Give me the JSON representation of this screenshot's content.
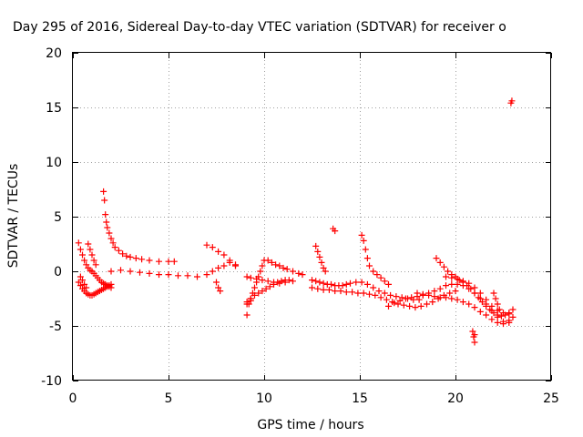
{
  "chart_data": {
    "type": "scatter",
    "title": "Day 295 of 2016, Sidereal Day-to-day VTEC variation (SDTVAR) for receiver o",
    "xlabel": "GPS time / hours",
    "ylabel": "SDTVAR / TECUs",
    "xlim": [
      0,
      25
    ],
    "ylim": [
      -10,
      20
    ],
    "x_ticks": [
      "0",
      "5",
      "10",
      "15",
      "20",
      "25"
    ],
    "y_ticks": [
      "-10",
      "-5",
      "0",
      "5",
      "10",
      "15",
      "20"
    ],
    "grid": true,
    "legend": "none",
    "marker": "+",
    "color": "#ff0000",
    "series": [
      {
        "x": [
          0.3,
          0.4,
          0.5,
          0.6,
          0.7,
          0.8,
          0.9,
          1.0,
          1.1,
          1.2,
          1.3,
          1.4,
          1.5,
          1.6,
          1.7,
          1.8,
          1.9,
          2.0,
          0.3,
          0.4,
          0.5,
          0.6,
          0.7,
          0.8,
          0.9,
          1.0,
          1.1,
          1.2,
          1.3,
          1.4,
          1.5,
          1.6,
          1.7,
          1.8,
          1.9,
          2.0,
          0.4,
          0.5,
          0.6,
          0.7,
          0.8,
          0.9,
          1.0,
          1.1,
          1.2,
          1.6,
          1.65,
          1.7,
          1.75,
          1.8,
          1.9,
          2.0,
          2.1,
          2.2,
          2.4,
          2.6,
          2.8,
          3.0,
          3.3,
          3.6,
          4.0,
          4.5,
          5.0,
          5.3,
          2.0,
          2.5,
          3.0,
          3.5,
          4.0,
          4.5,
          5.0,
          5.5,
          6.0,
          6.5,
          7.0,
          7.3,
          7.6,
          7.9,
          8.2,
          8.5,
          7.0,
          7.3,
          7.6,
          7.9,
          8.2,
          8.5,
          7.5,
          7.6,
          7.7,
          9.1,
          9.2,
          9.3,
          9.4,
          9.5,
          9.6,
          9.7,
          9.8,
          9.9,
          10.0,
          10.2,
          10.4,
          10.6,
          10.8,
          11.0,
          11.2,
          11.5,
          11.8,
          12.0,
          9.1,
          9.3,
          9.5,
          9.7,
          9.9,
          10.1,
          10.3,
          10.5,
          10.7,
          10.9,
          11.1,
          11.3,
          9.1,
          9.3,
          9.6,
          9.9,
          10.2,
          10.5,
          10.8,
          11.1,
          11.5,
          9.1,
          9.3,
          12.5,
          12.7,
          12.9,
          13.1,
          13.3,
          13.5,
          13.7,
          13.9,
          14.1,
          14.3,
          14.5,
          14.8,
          15.1,
          15.4,
          15.7,
          16.0,
          16.3,
          16.6,
          16.9,
          17.2,
          17.5,
          17.8,
          18.1,
          12.5,
          12.8,
          13.1,
          13.4,
          13.7,
          14.0,
          14.3,
          14.6,
          14.9,
          15.2,
          15.5,
          15.8,
          16.1,
          16.4,
          16.7,
          17.0,
          17.3,
          17.6,
          17.9,
          18.2,
          18.5,
          18.8,
          19.1,
          19.4,
          19.7,
          20.0,
          12.7,
          12.8,
          12.9,
          13.0,
          13.1,
          13.2,
          13.6,
          13.7,
          15.1,
          15.2,
          15.3,
          15.4,
          15.5,
          15.7,
          15.9,
          16.1,
          16.3,
          16.5,
          16.5,
          16.8,
          17.1,
          17.4,
          17.7,
          18.0,
          18.3,
          18.6,
          18.9,
          19.2,
          19.5,
          19.8,
          20.1,
          20.4,
          20.7,
          21.0,
          21.3,
          21.6,
          21.9,
          22.2,
          22.5,
          22.8,
          23.0,
          18.0,
          18.3,
          18.6,
          18.9,
          19.2,
          19.5,
          19.8,
          20.1,
          20.4,
          20.7,
          21.0,
          21.3,
          21.6,
          21.9,
          22.2,
          22.5,
          22.8,
          19.0,
          19.2,
          19.4,
          19.6,
          19.8,
          20.0,
          20.2,
          20.4,
          20.6,
          20.8,
          21.0,
          21.2,
          21.4,
          21.6,
          21.8,
          22.0,
          22.2,
          22.4,
          22.6,
          22.8,
          23.0,
          19.5,
          19.8,
          20.1,
          20.4,
          20.7,
          21.0,
          21.3,
          21.6,
          21.9,
          22.2,
          22.5,
          22.8,
          20.9,
          20.95,
          21.0,
          21.0,
          22.0,
          22.1,
          22.2,
          22.3,
          22.9,
          22.95
        ],
        "y": [
          2.6,
          2.0,
          1.5,
          1.0,
          0.6,
          0.3,
          0.1,
          0.0,
          -0.2,
          -0.4,
          -0.6,
          -0.8,
          -1.0,
          -1.1,
          -1.2,
          -1.3,
          -1.4,
          -1.5,
          -1.0,
          -1.3,
          -1.6,
          -1.8,
          -2.0,
          -2.1,
          -2.2,
          -2.2,
          -2.1,
          -2.0,
          -1.9,
          -1.8,
          -1.7,
          -1.6,
          -1.5,
          -1.4,
          -1.3,
          -1.2,
          -0.5,
          -0.8,
          -1.2,
          -1.5,
          2.5,
          2.0,
          1.5,
          1.0,
          0.6,
          7.3,
          6.5,
          5.2,
          4.5,
          4.0,
          3.5,
          3.0,
          2.6,
          2.2,
          1.9,
          1.6,
          1.4,
          1.3,
          1.2,
          1.1,
          1.0,
          0.9,
          0.9,
          0.9,
          0.0,
          0.1,
          0.0,
          -0.1,
          -0.2,
          -0.3,
          -0.3,
          -0.4,
          -0.4,
          -0.5,
          -0.3,
          0.0,
          0.3,
          0.5,
          0.8,
          0.6,
          2.4,
          2.2,
          1.8,
          1.5,
          1.0,
          0.5,
          -1.0,
          -1.5,
          -1.8,
          -4.0,
          -3.0,
          -2.5,
          -2.0,
          -1.5,
          -1.0,
          -0.5,
          0.0,
          0.5,
          1.0,
          1.0,
          0.8,
          0.6,
          0.5,
          0.3,
          0.2,
          0.0,
          -0.2,
          -0.3,
          -2.8,
          -2.5,
          -2.2,
          -2.0,
          -1.8,
          -1.6,
          -1.4,
          -1.2,
          -1.0,
          -0.9,
          -0.8,
          -0.8,
          -0.5,
          -0.6,
          -0.7,
          -0.8,
          -0.9,
          -1.0,
          -1.1,
          -1.0,
          -0.9,
          -3.0,
          -2.7,
          -0.8,
          -0.9,
          -1.0,
          -1.1,
          -1.2,
          -1.2,
          -1.3,
          -1.3,
          -1.3,
          -1.2,
          -1.1,
          -1.0,
          -1.0,
          -1.2,
          -1.5,
          -1.8,
          -2.0,
          -2.2,
          -2.3,
          -2.4,
          -2.5,
          -2.6,
          -2.6,
          -1.5,
          -1.6,
          -1.7,
          -1.7,
          -1.8,
          -1.8,
          -1.9,
          -1.9,
          -2.0,
          -2.0,
          -2.1,
          -2.2,
          -2.4,
          -2.6,
          -2.8,
          -3.0,
          -3.1,
          -3.2,
          -3.3,
          -3.2,
          -3.0,
          -2.8,
          -2.5,
          -2.2,
          -2.0,
          -1.8,
          2.3,
          1.8,
          1.3,
          0.8,
          0.3,
          0.0,
          3.9,
          3.7,
          3.3,
          2.8,
          2.0,
          1.2,
          0.5,
          0.0,
          -0.3,
          -0.6,
          -0.9,
          -1.2,
          -3.2,
          -2.9,
          -2.7,
          -2.5,
          -2.4,
          -2.3,
          -2.2,
          -2.0,
          -1.8,
          -1.6,
          -1.3,
          -1.2,
          -1.2,
          -1.3,
          -1.6,
          -2.0,
          -2.5,
          -3.0,
          -3.6,
          -4.2,
          -4.6,
          -4.5,
          -4.2,
          -2.0,
          -2.1,
          -2.2,
          -2.3,
          -2.4,
          -2.4,
          -2.5,
          -2.6,
          -2.8,
          -3.0,
          -3.3,
          -3.7,
          -4.0,
          -4.4,
          -4.7,
          -4.8,
          -4.7,
          1.2,
          0.8,
          0.4,
          0.0,
          -0.3,
          -0.5,
          -0.8,
          -1.0,
          -1.3,
          -1.6,
          -2.0,
          -2.4,
          -2.8,
          -3.2,
          -3.5,
          -3.8,
          -4.0,
          -4.1,
          -4.0,
          -3.8,
          -3.5,
          -0.5,
          -0.6,
          -0.7,
          -0.9,
          -1.1,
          -1.5,
          -2.0,
          -2.6,
          -3.2,
          -3.6,
          -3.8,
          -3.9,
          -5.5,
          -6.0,
          -6.5,
          -5.8,
          -2.0,
          -2.5,
          -3.0,
          -3.5,
          15.4,
          15.6
        ]
      }
    ]
  }
}
